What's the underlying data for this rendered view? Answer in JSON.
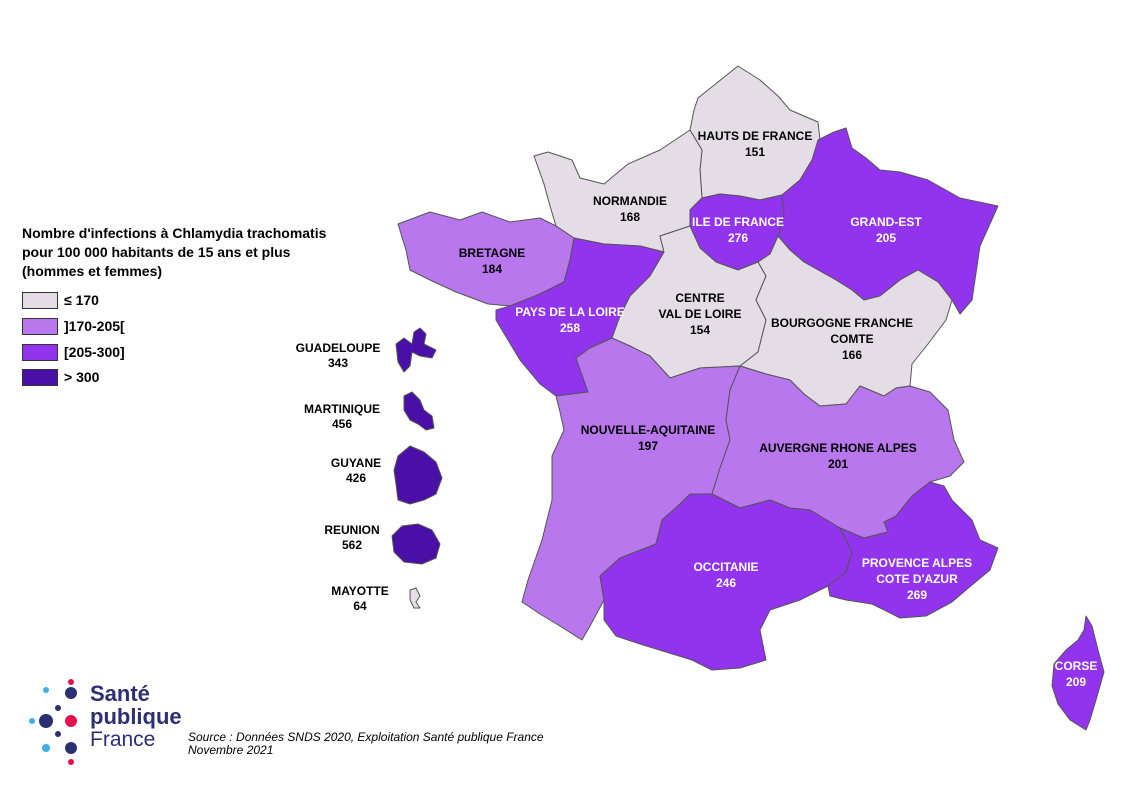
{
  "legend": {
    "title_lines": [
      "Nombre d'infections à Chlamydia trachomatis",
      "pour 100 000 habitants de 15 ans et plus",
      "(hommes et femmes)"
    ],
    "classes": [
      {
        "label": "≤ 170",
        "color": "#e4dde6"
      },
      {
        "label": "]170-205[",
        "color": "#b877ec"
      },
      {
        "label": "[205-300]",
        "color": "#9233ee"
      },
      {
        "label": "> 300",
        "color": "#4a0fa6"
      }
    ]
  },
  "regions": {
    "hauts_de_france": {
      "name": "HAUTS DE FRANCE",
      "value": "151"
    },
    "normandie": {
      "name": "NORMANDIE",
      "value": "168"
    },
    "ile_de_france": {
      "name": "ILE DE FRANCE",
      "value": "276"
    },
    "grand_est": {
      "name": "GRAND-EST",
      "value": "205"
    },
    "bretagne": {
      "name": "BRETAGNE",
      "value": "184"
    },
    "pays_de_la_loire": {
      "name": "PAYS DE LA LOIRE",
      "value": "258"
    },
    "centre_val_de_loire": {
      "name_line1": "CENTRE",
      "name_line2": "VAL DE LOIRE",
      "value": "154"
    },
    "bourgogne_franche_comte": {
      "name_line1": "BOURGOGNE FRANCHE",
      "name_line2": "COMTE",
      "value": "166"
    },
    "nouvelle_aquitaine": {
      "name": "NOUVELLE-AQUITAINE",
      "value": "197"
    },
    "auvergne_rhone_alpes": {
      "name": "AUVERGNE RHONE ALPES",
      "value": "201"
    },
    "occitanie": {
      "name": "OCCITANIE",
      "value": "246"
    },
    "provence_alpes_cote_azur": {
      "name_line1": "PROVENCE ALPES",
      "name_line2": "COTE D'AZUR",
      "value": "269"
    },
    "corse": {
      "name": "CORSE",
      "value": "209"
    }
  },
  "overseas": {
    "guadeloupe": {
      "name": "GUADELOUPE",
      "value": "343"
    },
    "martinique": {
      "name": "MARTINIQUE",
      "value": "456"
    },
    "guyane": {
      "name": "GUYANE",
      "value": "426"
    },
    "reunion": {
      "name": "REUNION",
      "value": "562"
    },
    "mayotte": {
      "name": "MAYOTTE",
      "value": "64"
    }
  },
  "logo": {
    "line1": "Santé",
    "line2": "publique",
    "line3": "France"
  },
  "source": {
    "line1": "Source : Données SNDS 2020, Exploitation Santé publique France",
    "line2": "Novembre 2021"
  }
}
